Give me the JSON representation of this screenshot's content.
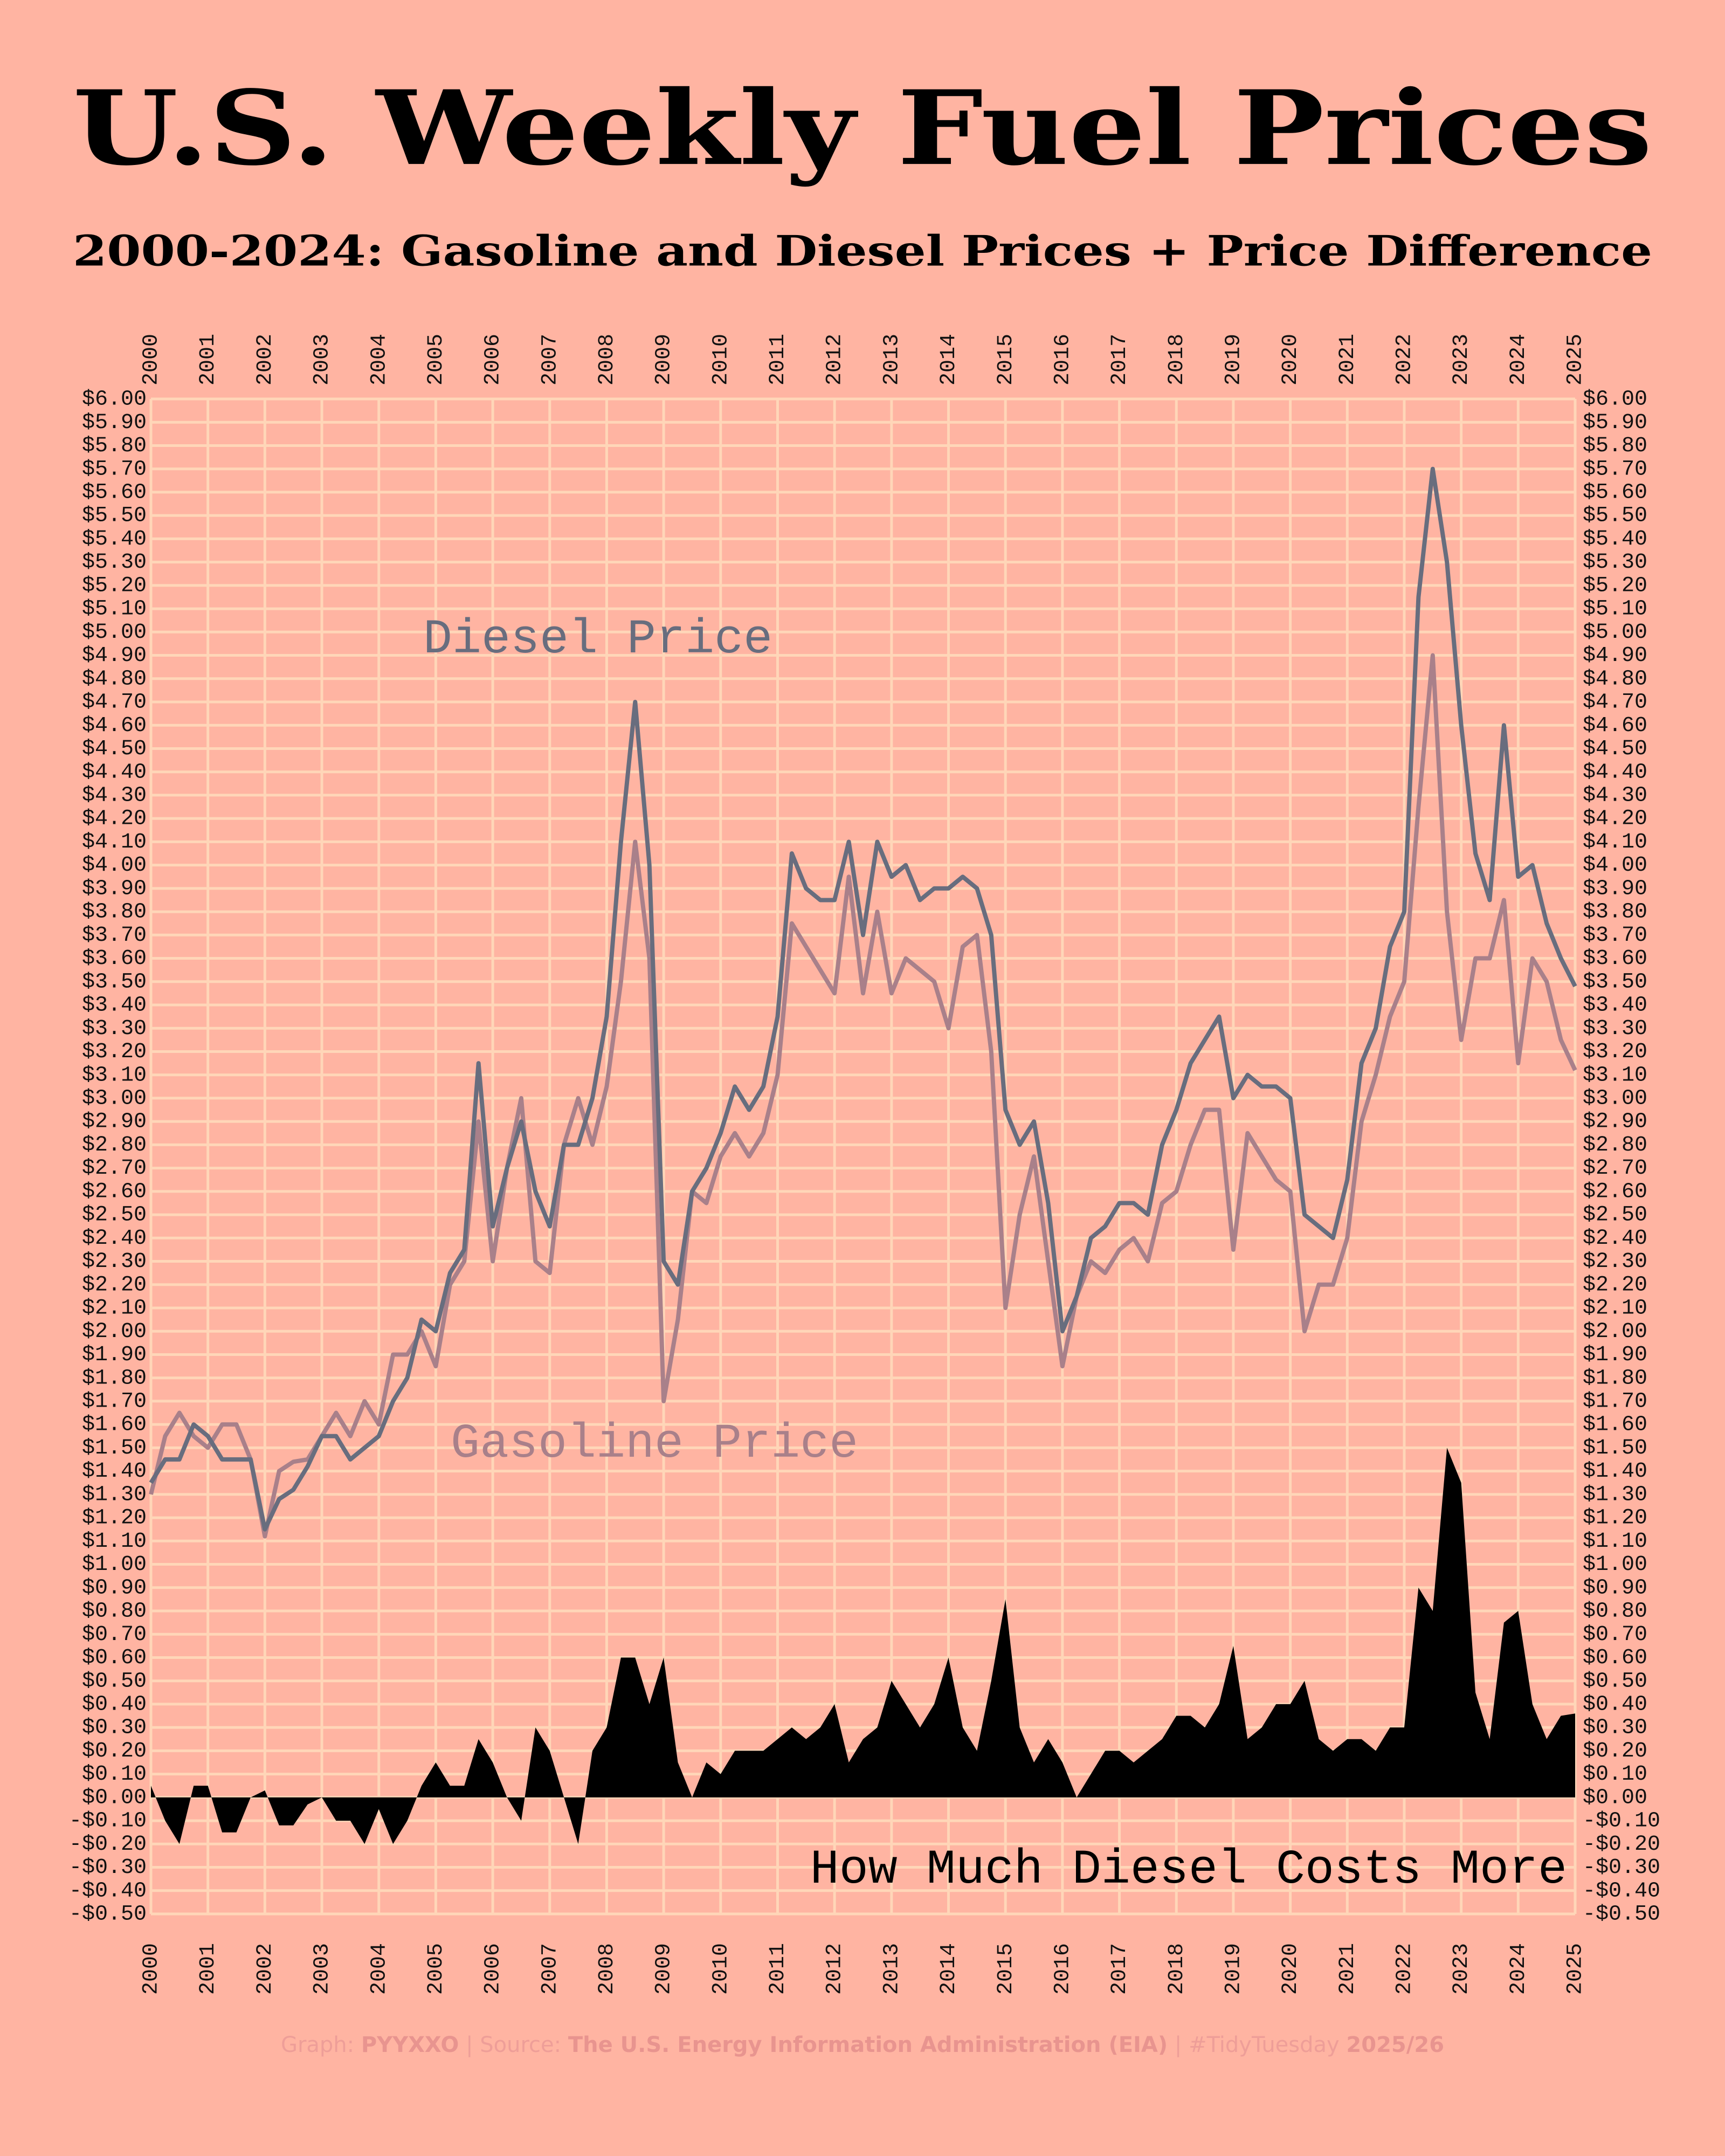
{
  "chart_data": {
    "type": "line",
    "title": "U.S. Weekly Fuel Prices",
    "subtitle": "2000-2024: Gasoline and Diesel Prices + Price Difference",
    "footer": [
      "Graph: ",
      "PYYXXO",
      " | Source: ",
      "The U.S. Energy Information Administration (EIA)",
      " | #TidyTuesday ",
      "2025/26"
    ],
    "grid": true,
    "background": "#ffb4a2",
    "grid_color": "#ffd6b8",
    "xlim": [
      2000,
      2025
    ],
    "xticks": [
      2000,
      2001,
      2002,
      2003,
      2004,
      2005,
      2006,
      2007,
      2008,
      2009,
      2010,
      2011,
      2012,
      2013,
      2014,
      2015,
      2016,
      2017,
      2018,
      2019,
      2020,
      2021,
      2022,
      2023,
      2024,
      2025
    ],
    "ylim": [
      -0.5,
      6.0
    ],
    "yticks": [
      {
        "value": -0.5,
        "label": "-$0.50"
      },
      {
        "value": -0.4,
        "label": "-$0.40"
      },
      {
        "value": -0.3,
        "label": "-$0.30"
      },
      {
        "value": -0.2,
        "label": "-$0.20"
      },
      {
        "value": -0.1,
        "label": "-$0.10"
      },
      {
        "value": 0,
        "label": "$0.00"
      },
      {
        "value": 0.1,
        "label": "$0.10"
      },
      {
        "value": 0.2,
        "label": "$0.20"
      },
      {
        "value": 0.3,
        "label": "$0.30"
      },
      {
        "value": 0.4,
        "label": "$0.40"
      },
      {
        "value": 0.5,
        "label": "$0.50"
      },
      {
        "value": 0.6,
        "label": "$0.60"
      },
      {
        "value": 0.7,
        "label": "$0.70"
      },
      {
        "value": 0.8,
        "label": "$0.80"
      },
      {
        "value": 0.9,
        "label": "$0.90"
      },
      {
        "value": 1.0,
        "label": "$1.00"
      },
      {
        "value": 1.1,
        "label": "$1.10"
      },
      {
        "value": 1.2,
        "label": "$1.20"
      },
      {
        "value": 1.3,
        "label": "$1.30"
      },
      {
        "value": 1.4,
        "label": "$1.40"
      },
      {
        "value": 1.5,
        "label": "$1.50"
      },
      {
        "value": 1.6,
        "label": "$1.60"
      },
      {
        "value": 1.7,
        "label": "$1.70"
      },
      {
        "value": 1.8,
        "label": "$1.80"
      },
      {
        "value": 1.9,
        "label": "$1.90"
      },
      {
        "value": 2.0,
        "label": "$2.00"
      },
      {
        "value": 2.1,
        "label": "$2.10"
      },
      {
        "value": 2.2,
        "label": "$2.20"
      },
      {
        "value": 2.3,
        "label": "$2.30"
      },
      {
        "value": 2.4,
        "label": "$2.40"
      },
      {
        "value": 2.5,
        "label": "$2.50"
      },
      {
        "value": 2.6,
        "label": "$2.60"
      },
      {
        "value": 2.7,
        "label": "$2.70"
      },
      {
        "value": 2.8,
        "label": "$2.80"
      },
      {
        "value": 2.9,
        "label": "$2.90"
      },
      {
        "value": 3.0,
        "label": "$3.00"
      },
      {
        "value": 3.1,
        "label": "$3.10"
      },
      {
        "value": 3.2,
        "label": "$3.20"
      },
      {
        "value": 3.3,
        "label": "$3.30"
      },
      {
        "value": 3.4,
        "label": "$3.40"
      },
      {
        "value": 3.5,
        "label": "$3.50"
      },
      {
        "value": 3.6,
        "label": "$3.60"
      },
      {
        "value": 3.7,
        "label": "$3.70"
      },
      {
        "value": 3.8,
        "label": "$3.80"
      },
      {
        "value": 3.9,
        "label": "$3.90"
      },
      {
        "value": 4.0,
        "label": "$4.00"
      },
      {
        "value": 4.1,
        "label": "$4.10"
      },
      {
        "value": 4.2,
        "label": "$4.20"
      },
      {
        "value": 4.3,
        "label": "$4.30"
      },
      {
        "value": 4.4,
        "label": "$4.40"
      },
      {
        "value": 4.5,
        "label": "$4.50"
      },
      {
        "value": 4.6,
        "label": "$4.60"
      },
      {
        "value": 4.7,
        "label": "$4.70"
      },
      {
        "value": 4.8,
        "label": "$4.80"
      },
      {
        "value": 4.9,
        "label": "$4.90"
      },
      {
        "value": 5.0,
        "label": "$5.00"
      },
      {
        "value": 5.1,
        "label": "$5.10"
      },
      {
        "value": 5.2,
        "label": "$5.20"
      },
      {
        "value": 5.3,
        "label": "$5.30"
      },
      {
        "value": 5.4,
        "label": "$5.40"
      },
      {
        "value": 5.5,
        "label": "$5.50"
      },
      {
        "value": 5.6,
        "label": "$5.60"
      },
      {
        "value": 5.7,
        "label": "$5.70"
      },
      {
        "value": 5.8,
        "label": "$5.80"
      },
      {
        "value": 5.9,
        "label": "$5.90"
      },
      {
        "value": 6.0,
        "label": "$6.00"
      }
    ],
    "x": [
      2000,
      2000.25,
      2000.5,
      2000.75,
      2001,
      2001.25,
      2001.5,
      2001.75,
      2002,
      2002.25,
      2002.5,
      2002.75,
      2003,
      2003.25,
      2003.5,
      2003.75,
      2004,
      2004.25,
      2004.5,
      2004.75,
      2005,
      2005.25,
      2005.5,
      2005.75,
      2006,
      2006.25,
      2006.5,
      2006.75,
      2007,
      2007.25,
      2007.5,
      2007.75,
      2008,
      2008.25,
      2008.5,
      2008.75,
      2009,
      2009.25,
      2009.5,
      2009.75,
      2010,
      2010.25,
      2010.5,
      2010.75,
      2011,
      2011.25,
      2011.5,
      2011.75,
      2012,
      2012.25,
      2012.5,
      2012.75,
      2013,
      2013.25,
      2013.5,
      2013.75,
      2014,
      2014.25,
      2014.5,
      2014.75,
      2015,
      2015.25,
      2015.5,
      2015.75,
      2016,
      2016.25,
      2016.5,
      2016.75,
      2017,
      2017.25,
      2017.5,
      2017.75,
      2018,
      2018.25,
      2018.5,
      2018.75,
      2019,
      2019.25,
      2019.5,
      2019.75,
      2020,
      2020.25,
      2020.5,
      2020.75,
      2021,
      2021.25,
      2021.5,
      2021.75,
      2022,
      2022.25,
      2022.5,
      2022.75,
      2023,
      2023.25,
      2023.5,
      2023.75,
      2024,
      2024.25,
      2024.5,
      2024.75,
      2025
    ],
    "series": [
      {
        "name": "Gasoline Price",
        "color": "#a9808a",
        "kind": "line",
        "values": [
          1.3,
          1.55,
          1.65,
          1.55,
          1.5,
          1.6,
          1.6,
          1.45,
          1.12,
          1.4,
          1.44,
          1.45,
          1.55,
          1.65,
          1.55,
          1.7,
          1.6,
          1.9,
          1.9,
          2.0,
          1.85,
          2.2,
          2.3,
          2.9,
          2.3,
          2.7,
          3.0,
          2.3,
          2.25,
          2.8,
          3.0,
          2.8,
          3.05,
          3.5,
          4.1,
          3.6,
          1.7,
          2.05,
          2.6,
          2.55,
          2.75,
          2.85,
          2.75,
          2.85,
          3.1,
          3.75,
          3.65,
          3.55,
          3.45,
          3.95,
          3.45,
          3.8,
          3.45,
          3.6,
          3.55,
          3.5,
          3.3,
          3.65,
          3.7,
          3.2,
          2.1,
          2.5,
          2.75,
          2.3,
          1.85,
          2.15,
          2.3,
          2.25,
          2.35,
          2.4,
          2.3,
          2.55,
          2.6,
          2.8,
          2.95,
          2.95,
          2.35,
          2.85,
          2.75,
          2.65,
          2.6,
          2.0,
          2.2,
          2.2,
          2.4,
          2.9,
          3.1,
          3.35,
          3.5,
          4.25,
          4.9,
          3.8,
          3.25,
          3.6,
          3.6,
          3.85,
          3.15,
          3.6,
          3.5,
          3.25,
          3.12
        ]
      },
      {
        "name": "Diesel Price",
        "color": "#686d7e",
        "kind": "line",
        "values": [
          1.35,
          1.45,
          1.45,
          1.6,
          1.55,
          1.45,
          1.45,
          1.45,
          1.15,
          1.28,
          1.32,
          1.42,
          1.55,
          1.55,
          1.45,
          1.5,
          1.55,
          1.7,
          1.8,
          2.05,
          2.0,
          2.25,
          2.35,
          3.15,
          2.45,
          2.7,
          2.9,
          2.6,
          2.45,
          2.8,
          2.8,
          3.0,
          3.35,
          4.1,
          4.7,
          4.0,
          2.3,
          2.2,
          2.6,
          2.7,
          2.85,
          3.05,
          2.95,
          3.05,
          3.35,
          4.05,
          3.9,
          3.85,
          3.85,
          4.1,
          3.7,
          4.1,
          3.95,
          4.0,
          3.85,
          3.9,
          3.9,
          3.95,
          3.9,
          3.7,
          2.95,
          2.8,
          2.9,
          2.55,
          2.0,
          2.15,
          2.4,
          2.45,
          2.55,
          2.55,
          2.5,
          2.8,
          2.95,
          3.15,
          3.25,
          3.35,
          3.0,
          3.1,
          3.05,
          3.05,
          3.0,
          2.5,
          2.45,
          2.4,
          2.65,
          3.15,
          3.3,
          3.65,
          3.8,
          5.15,
          5.7,
          5.3,
          4.6,
          4.05,
          3.85,
          4.6,
          3.95,
          4.0,
          3.75,
          3.6,
          3.48
        ]
      },
      {
        "name": "How Much Diesel Costs More",
        "color": "#000000",
        "kind": "area",
        "values": [
          0.05,
          -0.1,
          -0.2,
          0.05,
          0.05,
          -0.15,
          -0.15,
          0,
          0.03,
          -0.12,
          -0.12,
          -0.03,
          0,
          -0.1,
          -0.1,
          -0.2,
          -0.05,
          -0.2,
          -0.1,
          0.05,
          0.15,
          0.05,
          0.05,
          0.25,
          0.15,
          0,
          -0.1,
          0.3,
          0.2,
          0,
          -0.2,
          0.2,
          0.3,
          0.6,
          0.6,
          0.4,
          0.6,
          0.15,
          0,
          0.15,
          0.1,
          0.2,
          0.2,
          0.2,
          0.25,
          0.3,
          0.25,
          0.3,
          0.4,
          0.15,
          0.25,
          0.3,
          0.5,
          0.4,
          0.3,
          0.4,
          0.6,
          0.3,
          0.2,
          0.5,
          0.85,
          0.3,
          0.15,
          0.25,
          0.15,
          0,
          0.1,
          0.2,
          0.2,
          0.15,
          0.2,
          0.25,
          0.35,
          0.35,
          0.3,
          0.4,
          0.65,
          0.25,
          0.3,
          0.4,
          0.4,
          0.5,
          0.25,
          0.2,
          0.25,
          0.25,
          0.2,
          0.3,
          0.3,
          0.9,
          0.8,
          1.5,
          1.35,
          0.45,
          0.25,
          0.75,
          0.8,
          0.4,
          0.25,
          0.35,
          0.36
        ]
      }
    ]
  }
}
